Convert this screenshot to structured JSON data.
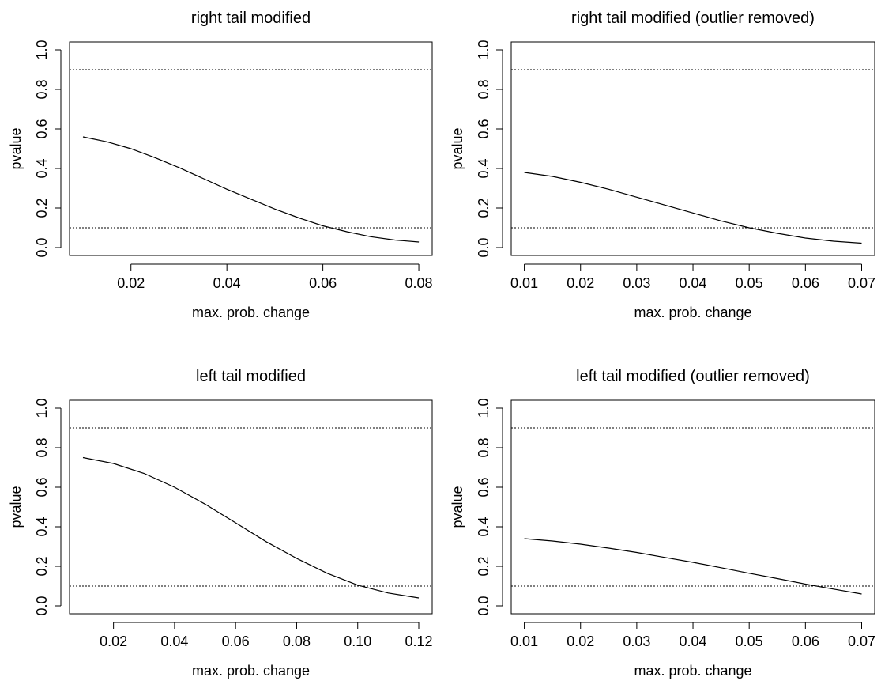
{
  "chart_data": [
    {
      "type": "line",
      "title": "right tail modified",
      "xlabel": "max. prob. change",
      "ylabel": "pvalue",
      "xlim": [
        0.01,
        0.08
      ],
      "ylim": [
        0.0,
        1.0
      ],
      "xticks": [
        "0.02",
        "0.04",
        "0.06",
        "0.08"
      ],
      "yticks": [
        "0.0",
        "0.2",
        "0.4",
        "0.6",
        "0.8",
        "1.0"
      ],
      "reference_lines": [
        0.9,
        0.1
      ],
      "series": [
        {
          "x": [
            0.01,
            0.015,
            0.02,
            0.025,
            0.03,
            0.035,
            0.04,
            0.045,
            0.05,
            0.055,
            0.06,
            0.065,
            0.07,
            0.075,
            0.08
          ],
          "y": [
            0.56,
            0.535,
            0.5,
            0.455,
            0.405,
            0.35,
            0.295,
            0.245,
            0.195,
            0.15,
            0.11,
            0.08,
            0.055,
            0.038,
            0.028
          ]
        }
      ]
    },
    {
      "type": "line",
      "title": "right tail modified (outlier removed)",
      "xlabel": "max. prob. change",
      "ylabel": "pvalue",
      "xlim": [
        0.01,
        0.07
      ],
      "ylim": [
        0.0,
        1.0
      ],
      "xticks": [
        "0.01",
        "0.02",
        "0.03",
        "0.04",
        "0.05",
        "0.06",
        "0.07"
      ],
      "yticks": [
        "0.0",
        "0.2",
        "0.4",
        "0.6",
        "0.8",
        "1.0"
      ],
      "reference_lines": [
        0.9,
        0.1
      ],
      "series": [
        {
          "x": [
            0.01,
            0.015,
            0.02,
            0.025,
            0.03,
            0.035,
            0.04,
            0.045,
            0.05,
            0.055,
            0.06,
            0.065,
            0.07
          ],
          "y": [
            0.38,
            0.36,
            0.33,
            0.295,
            0.255,
            0.215,
            0.175,
            0.135,
            0.1,
            0.072,
            0.048,
            0.032,
            0.022
          ]
        }
      ]
    },
    {
      "type": "line",
      "title": "left tail modified",
      "xlabel": "max. prob. change",
      "ylabel": "pvalue",
      "xlim": [
        0.01,
        0.12
      ],
      "ylim": [
        0.0,
        1.0
      ],
      "xticks": [
        "0.02",
        "0.04",
        "0.06",
        "0.08",
        "0.10",
        "0.12"
      ],
      "yticks": [
        "0.0",
        "0.2",
        "0.4",
        "0.6",
        "0.8",
        "1.0"
      ],
      "reference_lines": [
        0.9,
        0.1
      ],
      "series": [
        {
          "x": [
            0.01,
            0.02,
            0.03,
            0.04,
            0.05,
            0.06,
            0.07,
            0.08,
            0.09,
            0.1,
            0.11,
            0.12
          ],
          "y": [
            0.75,
            0.72,
            0.67,
            0.6,
            0.515,
            0.42,
            0.325,
            0.24,
            0.165,
            0.105,
            0.065,
            0.04
          ]
        }
      ]
    },
    {
      "type": "line",
      "title": "left tail modified (outlier removed)",
      "xlabel": "max. prob. change",
      "ylabel": "pvalue",
      "xlim": [
        0.01,
        0.07
      ],
      "ylim": [
        0.0,
        1.0
      ],
      "xticks": [
        "0.01",
        "0.02",
        "0.03",
        "0.04",
        "0.05",
        "0.06",
        "0.07"
      ],
      "yticks": [
        "0.0",
        "0.2",
        "0.4",
        "0.6",
        "0.8",
        "1.0"
      ],
      "reference_lines": [
        0.9,
        0.1
      ],
      "series": [
        {
          "x": [
            0.01,
            0.015,
            0.02,
            0.025,
            0.03,
            0.035,
            0.04,
            0.045,
            0.05,
            0.055,
            0.06,
            0.065,
            0.07
          ],
          "y": [
            0.34,
            0.328,
            0.312,
            0.292,
            0.27,
            0.245,
            0.22,
            0.193,
            0.165,
            0.138,
            0.11,
            0.085,
            0.06
          ]
        }
      ]
    }
  ]
}
